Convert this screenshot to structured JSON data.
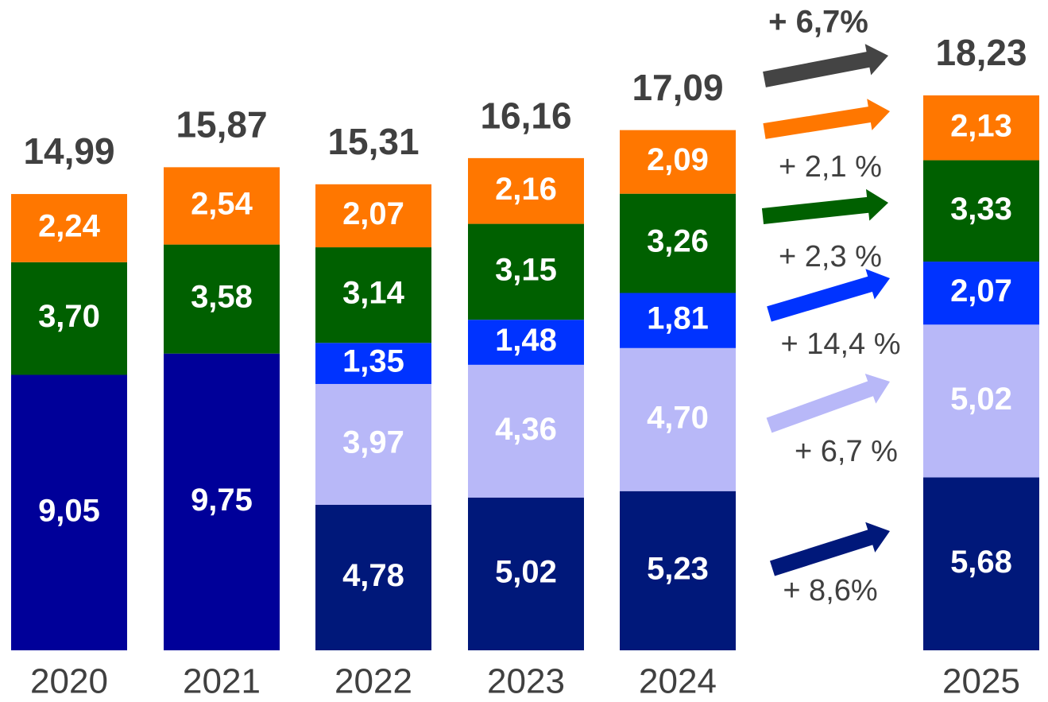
{
  "chart_data": {
    "type": "stacked_bar",
    "categories": [
      "2020",
      "2021",
      "2022",
      "2023",
      "2024",
      "2025"
    ],
    "series": [
      {
        "color": "#000099",
        "values": [
          9.05,
          9.75,
          null,
          null,
          null,
          null
        ],
        "value_labels": [
          "9,05",
          "9,75",
          null,
          null,
          null,
          null
        ]
      },
      {
        "color": "#00187a",
        "values": [
          null,
          null,
          4.78,
          5.02,
          5.23,
          5.68
        ],
        "value_labels": [
          null,
          null,
          "4,78",
          "5,02",
          "5,23",
          "5,68"
        ]
      },
      {
        "color": "#b8b8f8",
        "values": [
          null,
          null,
          3.97,
          4.36,
          4.7,
          5.02
        ],
        "value_labels": [
          null,
          null,
          "3,97",
          "4,36",
          "4,70",
          "5,02"
        ]
      },
      {
        "color": "#0033ff",
        "values": [
          null,
          null,
          1.35,
          1.48,
          1.81,
          2.07
        ],
        "value_labels": [
          null,
          null,
          "1,35",
          "1,48",
          "1,81",
          "2,07"
        ]
      },
      {
        "color": "#006000",
        "values": [
          3.7,
          3.58,
          3.14,
          3.15,
          3.26,
          3.33
        ],
        "value_labels": [
          "3,70",
          "3,58",
          "3,14",
          "3,15",
          "3,26",
          "3,33"
        ]
      },
      {
        "color": "#ff7700",
        "values": [
          2.24,
          2.54,
          2.07,
          2.16,
          2.09,
          2.13
        ],
        "value_labels": [
          "2,24",
          "2,54",
          "2,07",
          "2,16",
          "2,09",
          "2,13"
        ]
      }
    ],
    "totals": [
      14.99,
      15.87,
      15.31,
      16.16,
      17.09,
      18.23
    ],
    "total_labels": [
      "14,99",
      "15,87",
      "15,31",
      "16,16",
      "17,09",
      "18,23"
    ],
    "annotations": [
      {
        "text": "+ 6,7%",
        "color": "#444444"
      },
      {
        "text": "+ 2,1 %",
        "color": "#ff7700"
      },
      {
        "text": "+ 2,3 %",
        "color": "#006000"
      },
      {
        "text": "+ 14,4 %",
        "color": "#0033ff"
      },
      {
        "text": "+ 6,7 %",
        "color": "#b8b8f8"
      },
      {
        "text": "+ 8,6%",
        "color": "#00187a"
      }
    ]
  }
}
